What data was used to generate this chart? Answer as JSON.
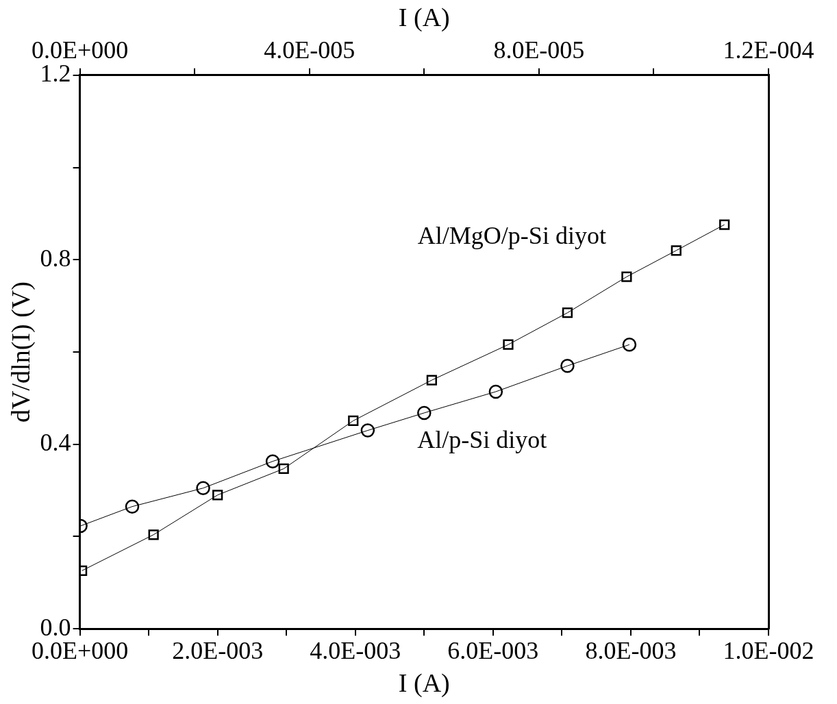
{
  "chart_data": {
    "type": "line",
    "xlabel": "I (A)",
    "ylabel": "dV/dln(I) (V)",
    "x2label": "I (A)",
    "xlim": [
      0,
      0.01
    ],
    "xticks": [
      {
        "value": 0,
        "label": "0.0E+000"
      },
      {
        "value": 0.001,
        "label": null
      },
      {
        "value": 0.002,
        "label": "2.0E-003"
      },
      {
        "value": 0.003,
        "label": null
      },
      {
        "value": 0.004,
        "label": "4.0E-003"
      },
      {
        "value": 0.005,
        "label": null
      },
      {
        "value": 0.006,
        "label": "6.0E-003"
      },
      {
        "value": 0.007,
        "label": null
      },
      {
        "value": 0.008,
        "label": "8.0E-003"
      },
      {
        "value": 0.009,
        "label": null
      },
      {
        "value": 0.01,
        "label": "1.0E-002"
      }
    ],
    "x2lim": [
      0,
      0.00012
    ],
    "x2ticks": [
      {
        "value": 0,
        "label": "0.0E+000"
      },
      {
        "value": 2e-05,
        "label": null
      },
      {
        "value": 4e-05,
        "label": "4.0E-005"
      },
      {
        "value": 6e-05,
        "label": null
      },
      {
        "value": 8e-05,
        "label": "8.0E-005"
      },
      {
        "value": 0.0001,
        "label": null
      },
      {
        "value": 0.00012,
        "label": "1.2E-004"
      }
    ],
    "ylim": [
      0,
      1.2
    ],
    "yticks": [
      {
        "value": 0,
        "label": "0.0"
      },
      {
        "value": 0.2,
        "label": null
      },
      {
        "value": 0.4,
        "label": "0.4"
      },
      {
        "value": 0.6,
        "label": null
      },
      {
        "value": 0.8,
        "label": "0.8"
      },
      {
        "value": 1.0,
        "label": null
      },
      {
        "value": 1.2,
        "label": "1.2"
      }
    ],
    "grid": false,
    "line_style": "solid",
    "series": [
      {
        "name": "Al/MgO/p-Si diyot",
        "color": "#000000",
        "marker": "square",
        "x": [
          3e-05,
          0.00107,
          0.002,
          0.00296,
          0.00397,
          0.00511,
          0.00622,
          0.00708,
          0.00794,
          0.00866,
          0.00936
        ],
        "values": [
          0.126,
          0.204,
          0.29,
          0.347,
          0.451,
          0.539,
          0.616,
          0.685,
          0.763,
          0.82,
          0.876
        ]
      },
      {
        "name": "Al/p-Si diyot",
        "color": "#000000",
        "marker": "circle",
        "x": [
          1e-05,
          0.00076,
          0.00179,
          0.0028,
          0.00418,
          0.005,
          0.00604,
          0.00708,
          0.00798
        ],
        "values": [
          0.223,
          0.265,
          0.305,
          0.363,
          0.43,
          0.468,
          0.514,
          0.57,
          0.616
        ]
      }
    ]
  }
}
